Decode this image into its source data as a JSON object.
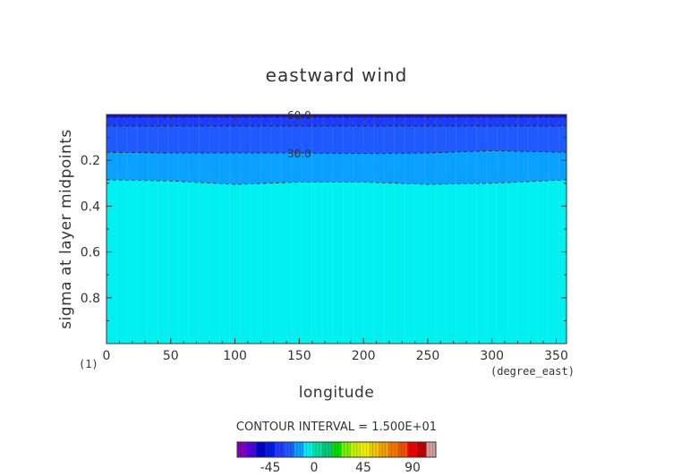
{
  "chart_data": {
    "type": "filled-contour",
    "title": "eastward wind",
    "xlabel": "longitude",
    "ylabel": "sigma at layer midpoints",
    "x_unit": "(degree_east)",
    "corner_label": "(1)",
    "xlim": [
      0,
      358
    ],
    "ylim": [
      0.0,
      1.0
    ],
    "y_inverted": true,
    "x_ticks": [
      "0",
      "50",
      "100",
      "150",
      "200",
      "250",
      "300",
      "350"
    ],
    "y_ticks": [
      "0.2",
      "0.4",
      "0.6",
      "0.8"
    ],
    "contour_interval_text": "CONTOUR INTERVAL = 1.500E+01",
    "contour_labels": [
      {
        "text": "60.0",
        "value": 60
      },
      {
        "text": "30.0",
        "value": 30
      }
    ],
    "bands": [
      {
        "range": [
          60,
          75
        ],
        "color": "#1010c8",
        "upper_sigma": [
          0.0,
          0.0,
          0.0,
          0.0,
          0.0,
          0.0,
          0.0,
          0.0
        ],
        "lower_sigma": [
          0.012,
          0.012,
          0.012,
          0.012,
          0.012,
          0.012,
          0.012,
          0.012
        ]
      },
      {
        "range": [
          45,
          60
        ],
        "color": "#1e3cff",
        "upper_sigma": [
          0.012,
          0.012,
          0.012,
          0.012,
          0.012,
          0.012,
          0.012,
          0.012
        ],
        "lower_sigma": [
          0.05,
          0.05,
          0.05,
          0.05,
          0.05,
          0.05,
          0.05,
          0.05
        ]
      },
      {
        "range": [
          30,
          45
        ],
        "color": "#1e5aff",
        "upper_sigma": [
          0.05,
          0.05,
          0.05,
          0.05,
          0.05,
          0.05,
          0.05,
          0.05
        ],
        "lower_sigma": [
          0.165,
          0.168,
          0.168,
          0.168,
          0.17,
          0.168,
          0.158,
          0.165
        ]
      },
      {
        "range": [
          15,
          30
        ],
        "color": "#0aa0ff",
        "upper_sigma": [
          0.165,
          0.168,
          0.168,
          0.168,
          0.17,
          0.168,
          0.158,
          0.165
        ],
        "lower_sigma": [
          0.285,
          0.29,
          0.305,
          0.295,
          0.295,
          0.305,
          0.3,
          0.285
        ]
      },
      {
        "range": [
          0,
          15
        ],
        "color": "#00f0f0",
        "upper_sigma": [
          0.285,
          0.29,
          0.305,
          0.295,
          0.295,
          0.305,
          0.3,
          0.285
        ],
        "lower_sigma": [
          1.0,
          1.0,
          1.0,
          1.0,
          1.0,
          1.0,
          1.0,
          1.0
        ]
      }
    ],
    "band_x": [
      0,
      50,
      100,
      150,
      200,
      250,
      300,
      358
    ],
    "colorbar": {
      "labels": [
        "-45",
        "0",
        "45",
        "90"
      ],
      "colors": [
        "#8000c0",
        "#5000e0",
        "#0000c8",
        "#0018e8",
        "#1e3cff",
        "#1e5aff",
        "#0aa0ff",
        "#00f0f0",
        "#00e0a0",
        "#00c878",
        "#00dc00",
        "#78f000",
        "#c8f000",
        "#f0f000",
        "#f0c800",
        "#f0a000",
        "#f07800",
        "#f05000",
        "#f00000",
        "#c00000",
        "#d0a0a0"
      ]
    }
  }
}
